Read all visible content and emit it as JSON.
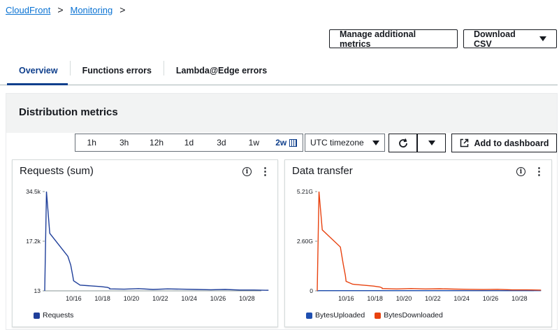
{
  "breadcrumb": {
    "items": [
      "CloudFront",
      "Monitoring"
    ],
    "sep": ">"
  },
  "actions": {
    "manage": "Manage additional metrics",
    "download": "Download CSV"
  },
  "tabs": [
    {
      "label": "Overview"
    },
    {
      "label": "Functions errors"
    },
    {
      "label": "Lambda@Edge errors"
    }
  ],
  "panel": {
    "title": "Distribution metrics"
  },
  "ranges": [
    "1h",
    "3h",
    "12h",
    "1d",
    "3d",
    "1w",
    "2w"
  ],
  "timezone": "UTC timezone",
  "add_dashboard": "Add to dashboard",
  "colors": {
    "requests": "#1f3f9a",
    "uploaded": "#1f4fb0",
    "downloaded": "#e8420f",
    "link": "#0972d3"
  },
  "icons": [
    "chevron-right-icon",
    "caret-down-icon",
    "calendar-icon",
    "refresh-icon",
    "external-link-icon",
    "info-icon",
    "kebab-icon"
  ],
  "chart_data": [
    {
      "type": "line",
      "title": "Requests (sum)",
      "y_ticks": [
        "34.5k",
        "17.2k",
        "13"
      ],
      "x_ticks": [
        "10/16",
        "10/18",
        "10/20",
        "10/22",
        "10/24",
        "10/26",
        "10/28"
      ],
      "ylim": [
        13,
        34500
      ],
      "x": [
        "10/14",
        "10/14",
        "10/14",
        "10/15",
        "10/15",
        "10/15",
        "10/16",
        "10/16",
        "10/17",
        "10/17",
        "10/18",
        "10/18",
        "10/19",
        "10/20",
        "10/21",
        "10/22",
        "10/23",
        "10/24",
        "10/25",
        "10/26",
        "10/27",
        "10/28",
        "10/29"
      ],
      "series": [
        {
          "name": "Requests",
          "values": [
            13,
            34500,
            20000,
            12000,
            9000,
            5000,
            3500,
            2000,
            1500,
            1200,
            900,
            700,
            600,
            800,
            500,
            700,
            600,
            500,
            400,
            500,
            300,
            300,
            200
          ]
        }
      ],
      "legend": [
        "Requests"
      ]
    },
    {
      "type": "line",
      "title": "Data transfer",
      "y_ticks": [
        "5.21G",
        "2.60G",
        "0"
      ],
      "x_ticks": [
        "10/16",
        "10/18",
        "10/20",
        "10/22",
        "10/24",
        "10/26",
        "10/28"
      ],
      "ylim": [
        0,
        5.21
      ],
      "x": [
        "10/14",
        "10/14",
        "10/14",
        "10/15",
        "10/15",
        "10/15",
        "10/16",
        "10/16",
        "10/17",
        "10/17",
        "10/18",
        "10/18",
        "10/19",
        "10/20",
        "10/21",
        "10/22",
        "10/23",
        "10/24",
        "10/25",
        "10/26",
        "10/27",
        "10/28",
        "10/29"
      ],
      "series": [
        {
          "name": "BytesUploaded",
          "values": [
            0,
            0.01,
            0.01,
            0.01,
            0.01,
            0.01,
            0.01,
            0.01,
            0.01,
            0.01,
            0.01,
            0.01,
            0.01,
            0.01,
            0.01,
            0.01,
            0.01,
            0.01,
            0.01,
            0.01,
            0.01,
            0.01,
            0.01
          ]
        },
        {
          "name": "BytesDownloaded",
          "values": [
            0,
            5.21,
            3.2,
            2.3,
            1.4,
            0.8,
            0.5,
            0.35,
            0.25,
            0.2,
            0.15,
            0.12,
            0.1,
            0.12,
            0.1,
            0.11,
            0.09,
            0.08,
            0.07,
            0.08,
            0.05,
            0.05,
            0.04
          ]
        }
      ],
      "legend": [
        "BytesUploaded",
        "BytesDownloaded"
      ]
    }
  ]
}
